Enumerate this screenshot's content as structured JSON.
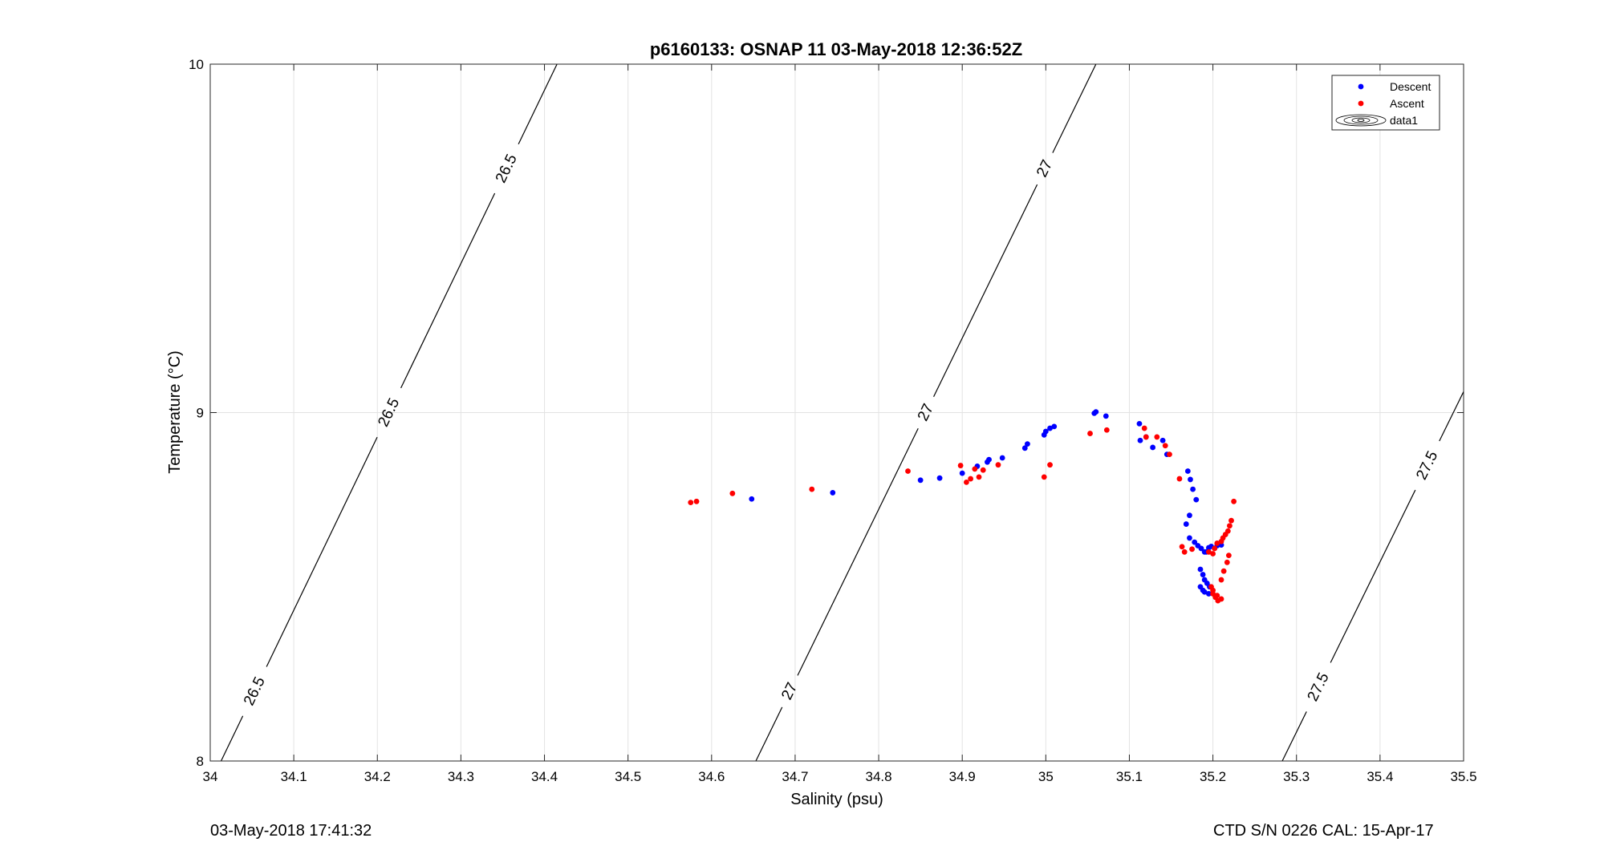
{
  "chart_data": {
    "type": "scatter",
    "title": "p6160133: OSNAP 11 03-May-2018 12:36:52Z",
    "xlabel": "Salinity (psu)",
    "ylabel": "Temperature (°C)",
    "xlim": [
      34,
      35.5
    ],
    "ylim": [
      8,
      10
    ],
    "xticks": [
      "34",
      "34.1",
      "34.2",
      "34.3",
      "34.4",
      "34.5",
      "34.6",
      "34.7",
      "34.8",
      "34.9",
      "35",
      "35.1",
      "35.2",
      "35.3",
      "35.4",
      "35.5"
    ],
    "yticks": [
      "8",
      "9",
      "10"
    ],
    "grid": true,
    "legend_position": "top-right",
    "legend": [
      "Descent",
      "Ascent",
      "data1"
    ],
    "series": [
      {
        "name": "Descent",
        "color": "#0000ff",
        "x": [
          34.648,
          34.745,
          34.85,
          34.873,
          34.9,
          34.918,
          34.93,
          34.932,
          34.948,
          34.975,
          34.978,
          34.998,
          35.0,
          35.005,
          35.01,
          35.058,
          35.06,
          35.072,
          35.112,
          35.113,
          35.12,
          35.128,
          35.14,
          35.145,
          35.17,
          35.173,
          35.176,
          35.18,
          35.172,
          35.168,
          35.172,
          35.178,
          35.182,
          35.186,
          35.19,
          35.192,
          35.195,
          35.198,
          35.205,
          35.21,
          35.185,
          35.188,
          35.19,
          35.193,
          35.196,
          35.185,
          35.188,
          35.19,
          35.195
        ],
        "y": [
          8.752,
          8.77,
          8.806,
          8.812,
          8.826,
          8.846,
          8.858,
          8.865,
          8.87,
          8.898,
          8.91,
          8.936,
          8.946,
          8.955,
          8.96,
          8.998,
          9.002,
          8.99,
          8.968,
          8.92,
          8.93,
          8.9,
          8.92,
          8.88,
          8.832,
          8.808,
          8.78,
          8.75,
          8.705,
          8.68,
          8.64,
          8.628,
          8.618,
          8.61,
          8.6,
          8.6,
          8.612,
          8.616,
          8.618,
          8.62,
          8.55,
          8.535,
          8.52,
          8.51,
          8.5,
          8.5,
          8.49,
          8.485,
          8.48
        ]
      },
      {
        "name": "Ascent",
        "color": "#ff0000",
        "x": [
          34.575,
          34.582,
          34.625,
          34.72,
          34.835,
          34.898,
          34.905,
          34.91,
          34.915,
          34.92,
          34.925,
          34.943,
          34.998,
          35.005,
          35.053,
          35.073,
          35.118,
          35.12,
          35.133,
          35.143,
          35.148,
          35.16,
          35.163,
          35.166,
          35.175,
          35.195,
          35.2,
          35.202,
          35.205,
          35.21,
          35.212,
          35.215,
          35.218,
          35.22,
          35.222,
          35.225,
          35.198,
          35.2,
          35.203,
          35.206,
          35.21,
          35.213,
          35.217,
          35.219,
          35.2,
          35.205,
          35.21
        ],
        "y": [
          8.742,
          8.745,
          8.768,
          8.78,
          8.832,
          8.848,
          8.8,
          8.81,
          8.838,
          8.815,
          8.835,
          8.85,
          8.815,
          8.85,
          8.94,
          8.95,
          8.955,
          8.93,
          8.93,
          8.905,
          8.88,
          8.81,
          8.615,
          8.6,
          8.608,
          8.6,
          8.595,
          8.61,
          8.625,
          8.63,
          8.64,
          8.65,
          8.66,
          8.675,
          8.69,
          8.745,
          8.5,
          8.48,
          8.47,
          8.46,
          8.52,
          8.545,
          8.57,
          8.59,
          8.49,
          8.475,
          8.465
        ]
      }
    ],
    "density_contours": [
      {
        "value": "26.5",
        "labels": [
          "26.5",
          "26.5",
          "26.5"
        ],
        "line": [
          [
            34.013,
            8.0
          ],
          [
            34.415,
            10.0
          ]
        ]
      },
      {
        "value": "27",
        "labels": [
          "27",
          "27",
          "27"
        ],
        "line": [
          [
            34.653,
            8.0
          ],
          [
            35.06,
            10.0
          ]
        ]
      },
      {
        "value": "27.5",
        "labels": [
          "27.5",
          "27.5"
        ],
        "line": [
          [
            35.283,
            8.0
          ],
          [
            35.5,
            9.06
          ]
        ]
      }
    ]
  },
  "footer": {
    "left": "03-May-2018 17:41:32",
    "right": "CTD S/N 0226  CAL: 15-Apr-17"
  }
}
